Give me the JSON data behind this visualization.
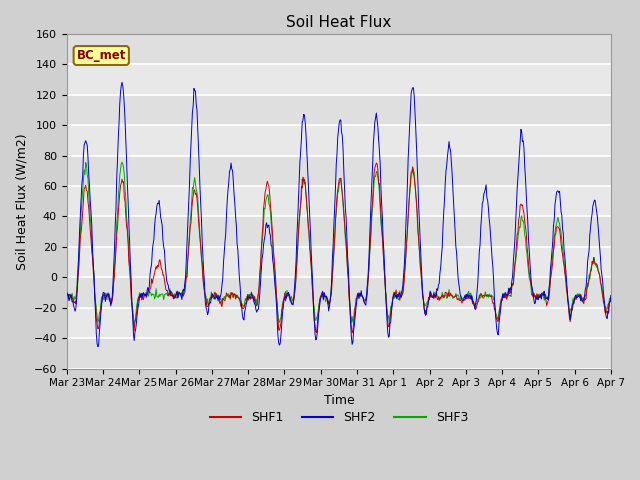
{
  "title": "Soil Heat Flux",
  "ylabel": "Soil Heat Flux (W/m2)",
  "xlabel": "Time",
  "annotation_text": "BC_met",
  "ylim": [
    -60,
    160
  ],
  "yticks": [
    -60,
    -40,
    -20,
    0,
    20,
    40,
    60,
    80,
    100,
    120,
    140,
    160
  ],
  "xtick_labels": [
    "Mar 23",
    "Mar 24",
    "Mar 25",
    "Mar 26",
    "Mar 27",
    "Mar 28",
    "Mar 29",
    "Mar 30",
    "Mar 31",
    "Apr 1",
    "Apr 2",
    "Apr 3",
    "Apr 4",
    "Apr 5",
    "Apr 6",
    "Apr 7"
  ],
  "shf1_color": "#cc0000",
  "shf2_color": "#0000dd",
  "shf3_color": "#00aa00",
  "fig_facecolor": "#d0d0d0",
  "axes_facecolor": "#e8e8e8",
  "grid_color": "#ffffff",
  "legend_labels": [
    "SHF1",
    "SHF2",
    "SHF3"
  ],
  "n_days": 15,
  "pts_per_day": 48,
  "shf2_peaks": [
    102,
    141,
    61,
    135,
    85,
    47,
    118,
    116,
    118,
    138,
    99,
    71,
    107,
    71,
    62
  ],
  "shf1_peaks": [
    70,
    75,
    21,
    70,
    0,
    75,
    76,
    77,
    88,
    83,
    0,
    0,
    60,
    45,
    22
  ],
  "shf3_peaks": [
    85,
    88,
    0,
    76,
    0,
    65,
    75,
    75,
    82,
    83,
    0,
    0,
    50,
    50,
    22
  ],
  "shf2_valley": [
    -50,
    -44,
    -14,
    -28,
    -30,
    -47,
    -45,
    -47,
    -43,
    -30,
    -18,
    -40,
    -18,
    -28,
    -28
  ],
  "shf1_valley": [
    -36,
    -35,
    -13,
    -22,
    -21,
    -38,
    -38,
    -38,
    -35,
    -26,
    -16,
    -30,
    -16,
    -28,
    -25
  ],
  "shf3_valley": [
    -32,
    -32,
    -10,
    -20,
    -18,
    -32,
    -32,
    -32,
    -30,
    -23,
    -14,
    -26,
    -14,
    -24,
    -22
  ],
  "night_base": [
    -12,
    -12,
    -12,
    -12,
    -12,
    -12,
    -12,
    -12,
    -12,
    -12,
    -12,
    -12,
    -12,
    -12,
    -12
  ]
}
